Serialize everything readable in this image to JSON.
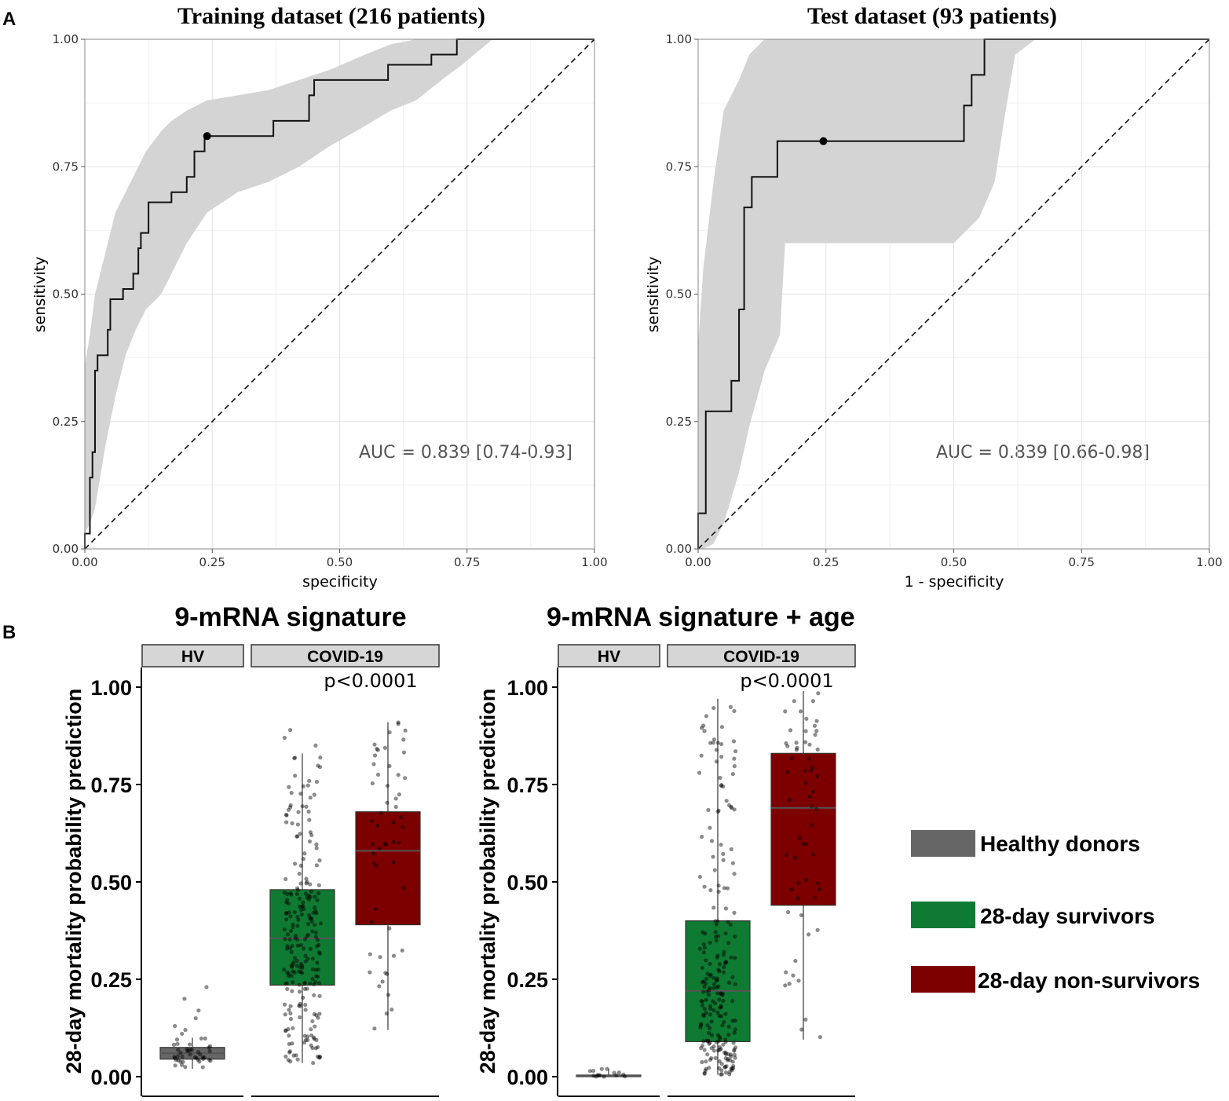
{
  "panel_labels": {
    "a": "A",
    "b": "B"
  },
  "chart_data": [
    {
      "type": "line",
      "subtype": "roc",
      "title": "Training dataset (216 patients)",
      "xlabel": "specificity",
      "ylabel": "sensitivity",
      "xlim": [
        0,
        1
      ],
      "ylim": [
        0,
        1
      ],
      "x_ticks": [
        "0.00",
        "0.25",
        "0.50",
        "0.75",
        "1.00"
      ],
      "y_ticks": [
        "0.00",
        "0.25",
        "0.50",
        "0.75",
        "1.00"
      ],
      "grid": true,
      "annotation": "AUC = 0.839 [0.74-0.93]",
      "roc_curve": [
        [
          0,
          0
        ],
        [
          0,
          0.03
        ],
        [
          0.01,
          0.03
        ],
        [
          0.01,
          0.14
        ],
        [
          0.015,
          0.14
        ],
        [
          0.015,
          0.19
        ],
        [
          0.02,
          0.19
        ],
        [
          0.02,
          0.35
        ],
        [
          0.025,
          0.35
        ],
        [
          0.025,
          0.38
        ],
        [
          0.045,
          0.38
        ],
        [
          0.045,
          0.43
        ],
        [
          0.05,
          0.43
        ],
        [
          0.05,
          0.49
        ],
        [
          0.075,
          0.49
        ],
        [
          0.075,
          0.51
        ],
        [
          0.095,
          0.51
        ],
        [
          0.095,
          0.54
        ],
        [
          0.105,
          0.54
        ],
        [
          0.105,
          0.59
        ],
        [
          0.11,
          0.59
        ],
        [
          0.11,
          0.62
        ],
        [
          0.125,
          0.62
        ],
        [
          0.125,
          0.68
        ],
        [
          0.17,
          0.68
        ],
        [
          0.17,
          0.7
        ],
        [
          0.2,
          0.7
        ],
        [
          0.2,
          0.73
        ],
        [
          0.215,
          0.73
        ],
        [
          0.215,
          0.78
        ],
        [
          0.235,
          0.78
        ],
        [
          0.235,
          0.81
        ],
        [
          0.37,
          0.81
        ],
        [
          0.37,
          0.84
        ],
        [
          0.44,
          0.84
        ],
        [
          0.44,
          0.89
        ],
        [
          0.45,
          0.89
        ],
        [
          0.45,
          0.92
        ],
        [
          0.595,
          0.92
        ],
        [
          0.595,
          0.95
        ],
        [
          0.68,
          0.95
        ],
        [
          0.68,
          0.97
        ],
        [
          0.73,
          0.97
        ],
        [
          0.73,
          1.0
        ],
        [
          1.0,
          1.0
        ]
      ],
      "threshold_point": [
        0.24,
        0.81
      ],
      "ci_band": [
        [
          0,
          0.03,
          0.36
        ],
        [
          0.01,
          0.05,
          0.42
        ],
        [
          0.02,
          0.08,
          0.5
        ],
        [
          0.04,
          0.2,
          0.58
        ],
        [
          0.06,
          0.3,
          0.66
        ],
        [
          0.08,
          0.38,
          0.7
        ],
        [
          0.1,
          0.43,
          0.74
        ],
        [
          0.12,
          0.47,
          0.78
        ],
        [
          0.15,
          0.5,
          0.82
        ],
        [
          0.17,
          0.54,
          0.84
        ],
        [
          0.2,
          0.6,
          0.86
        ],
        [
          0.24,
          0.66,
          0.88
        ],
        [
          0.3,
          0.7,
          0.89
        ],
        [
          0.36,
          0.72,
          0.9
        ],
        [
          0.42,
          0.75,
          0.92
        ],
        [
          0.48,
          0.79,
          0.94
        ],
        [
          0.55,
          0.83,
          0.97
        ],
        [
          0.6,
          0.86,
          0.99
        ],
        [
          0.65,
          0.88,
          1.0
        ],
        [
          0.7,
          0.92,
          1.0
        ],
        [
          0.74,
          0.95,
          1.0
        ],
        [
          0.8,
          1.0,
          1.0
        ]
      ]
    },
    {
      "type": "line",
      "subtype": "roc",
      "title": "Test dataset (93 patients)",
      "xlabel": "1 - specificity",
      "ylabel": "sensitivity",
      "xlim": [
        0,
        1
      ],
      "ylim": [
        0,
        1
      ],
      "x_ticks": [
        "0.00",
        "0.25",
        "0.50",
        "0.75",
        "1.00"
      ],
      "y_ticks": [
        "0.00",
        "0.25",
        "0.50",
        "0.75",
        "1.00"
      ],
      "grid": true,
      "annotation": "AUC = 0.839 [0.66-0.98]",
      "roc_curve": [
        [
          0,
          0
        ],
        [
          0,
          0.07
        ],
        [
          0.015,
          0.07
        ],
        [
          0.015,
          0.27
        ],
        [
          0.065,
          0.27
        ],
        [
          0.065,
          0.33
        ],
        [
          0.08,
          0.33
        ],
        [
          0.08,
          0.47
        ],
        [
          0.09,
          0.47
        ],
        [
          0.09,
          0.67
        ],
        [
          0.105,
          0.67
        ],
        [
          0.105,
          0.73
        ],
        [
          0.155,
          0.73
        ],
        [
          0.155,
          0.8
        ],
        [
          0.52,
          0.8
        ],
        [
          0.52,
          0.87
        ],
        [
          0.535,
          0.87
        ],
        [
          0.535,
          0.93
        ],
        [
          0.56,
          0.93
        ],
        [
          0.56,
          1.0
        ],
        [
          1.0,
          1.0
        ]
      ],
      "threshold_point": [
        0.245,
        0.8
      ],
      "ci_band": [
        [
          0,
          0.0,
          0.4
        ],
        [
          0.01,
          0.0,
          0.55
        ],
        [
          0.03,
          0.01,
          0.72
        ],
        [
          0.05,
          0.05,
          0.86
        ],
        [
          0.08,
          0.15,
          0.92
        ],
        [
          0.1,
          0.24,
          0.97
        ],
        [
          0.13,
          0.35,
          1.0
        ],
        [
          0.16,
          0.42,
          1.0
        ],
        [
          0.17,
          0.6,
          1.0
        ],
        [
          0.25,
          0.6,
          1.0
        ],
        [
          0.4,
          0.6,
          1.0
        ],
        [
          0.5,
          0.6,
          1.0
        ],
        [
          0.55,
          0.65,
          1.0
        ],
        [
          0.58,
          0.72,
          1.0
        ],
        [
          0.6,
          0.85,
          1.0
        ],
        [
          0.62,
          0.97,
          1.0
        ],
        [
          0.66,
          1.0,
          1.0
        ]
      ]
    },
    {
      "type": "box",
      "title": "9-mRNA signature",
      "ylabel": "28-day mortality probability prediction",
      "ylim": [
        0,
        1
      ],
      "y_ticks": [
        "0.00",
        "0.25",
        "0.50",
        "0.75",
        "1.00"
      ],
      "facets": [
        "HV",
        "COVID-19"
      ],
      "annotation": "p<0.0001",
      "boxes": [
        {
          "group": "Healthy donors",
          "facet": "HV",
          "min": 0.02,
          "q1": 0.045,
          "median": 0.06,
          "q3": 0.075,
          "max": 0.1,
          "outliers": [
            0.2,
            0.23,
            0.17,
            0.15,
            0.11,
            0.12,
            0.13
          ]
        },
        {
          "group": "28-day survivors",
          "facet": "COVID-19",
          "min": 0.035,
          "q1": 0.235,
          "median": 0.355,
          "q3": 0.48,
          "max": 0.83,
          "outliers": [
            0.85,
            0.87,
            0.89
          ]
        },
        {
          "group": "28-day non-survivors",
          "facet": "COVID-19",
          "min": 0.12,
          "q1": 0.39,
          "median": 0.58,
          "q3": 0.68,
          "max": 0.91,
          "outliers": []
        }
      ]
    },
    {
      "type": "box",
      "title": "9-mRNA signature + age",
      "ylabel": "28-day mortality probability prediction",
      "ylim": [
        0,
        1
      ],
      "y_ticks": [
        "0.00",
        "0.25",
        "0.50",
        "0.75",
        "1.00"
      ],
      "facets": [
        "HV",
        "COVID-19"
      ],
      "annotation": "p<0.0001",
      "boxes": [
        {
          "group": "Healthy donors",
          "facet": "HV",
          "min": 0.0,
          "q1": 0.0,
          "median": 0.002,
          "q3": 0.004,
          "max": 0.02,
          "outliers": [
            0.01,
            0.015,
            0.02
          ]
        },
        {
          "group": "28-day survivors",
          "facet": "COVID-19",
          "min": 0.005,
          "q1": 0.09,
          "median": 0.22,
          "q3": 0.4,
          "max": 0.97,
          "outliers": []
        },
        {
          "group": "28-day non-survivors",
          "facet": "COVID-19",
          "min": 0.095,
          "q1": 0.44,
          "median": 0.69,
          "q3": 0.83,
          "max": 0.99,
          "outliers": []
        }
      ]
    }
  ],
  "legend": {
    "items": [
      {
        "label": "Healthy donors",
        "color": "#666666"
      },
      {
        "label": "28-day survivors",
        "color": "#0f7a32"
      },
      {
        "label": "28-day non-survivors",
        "color": "#7d0000"
      }
    ]
  }
}
